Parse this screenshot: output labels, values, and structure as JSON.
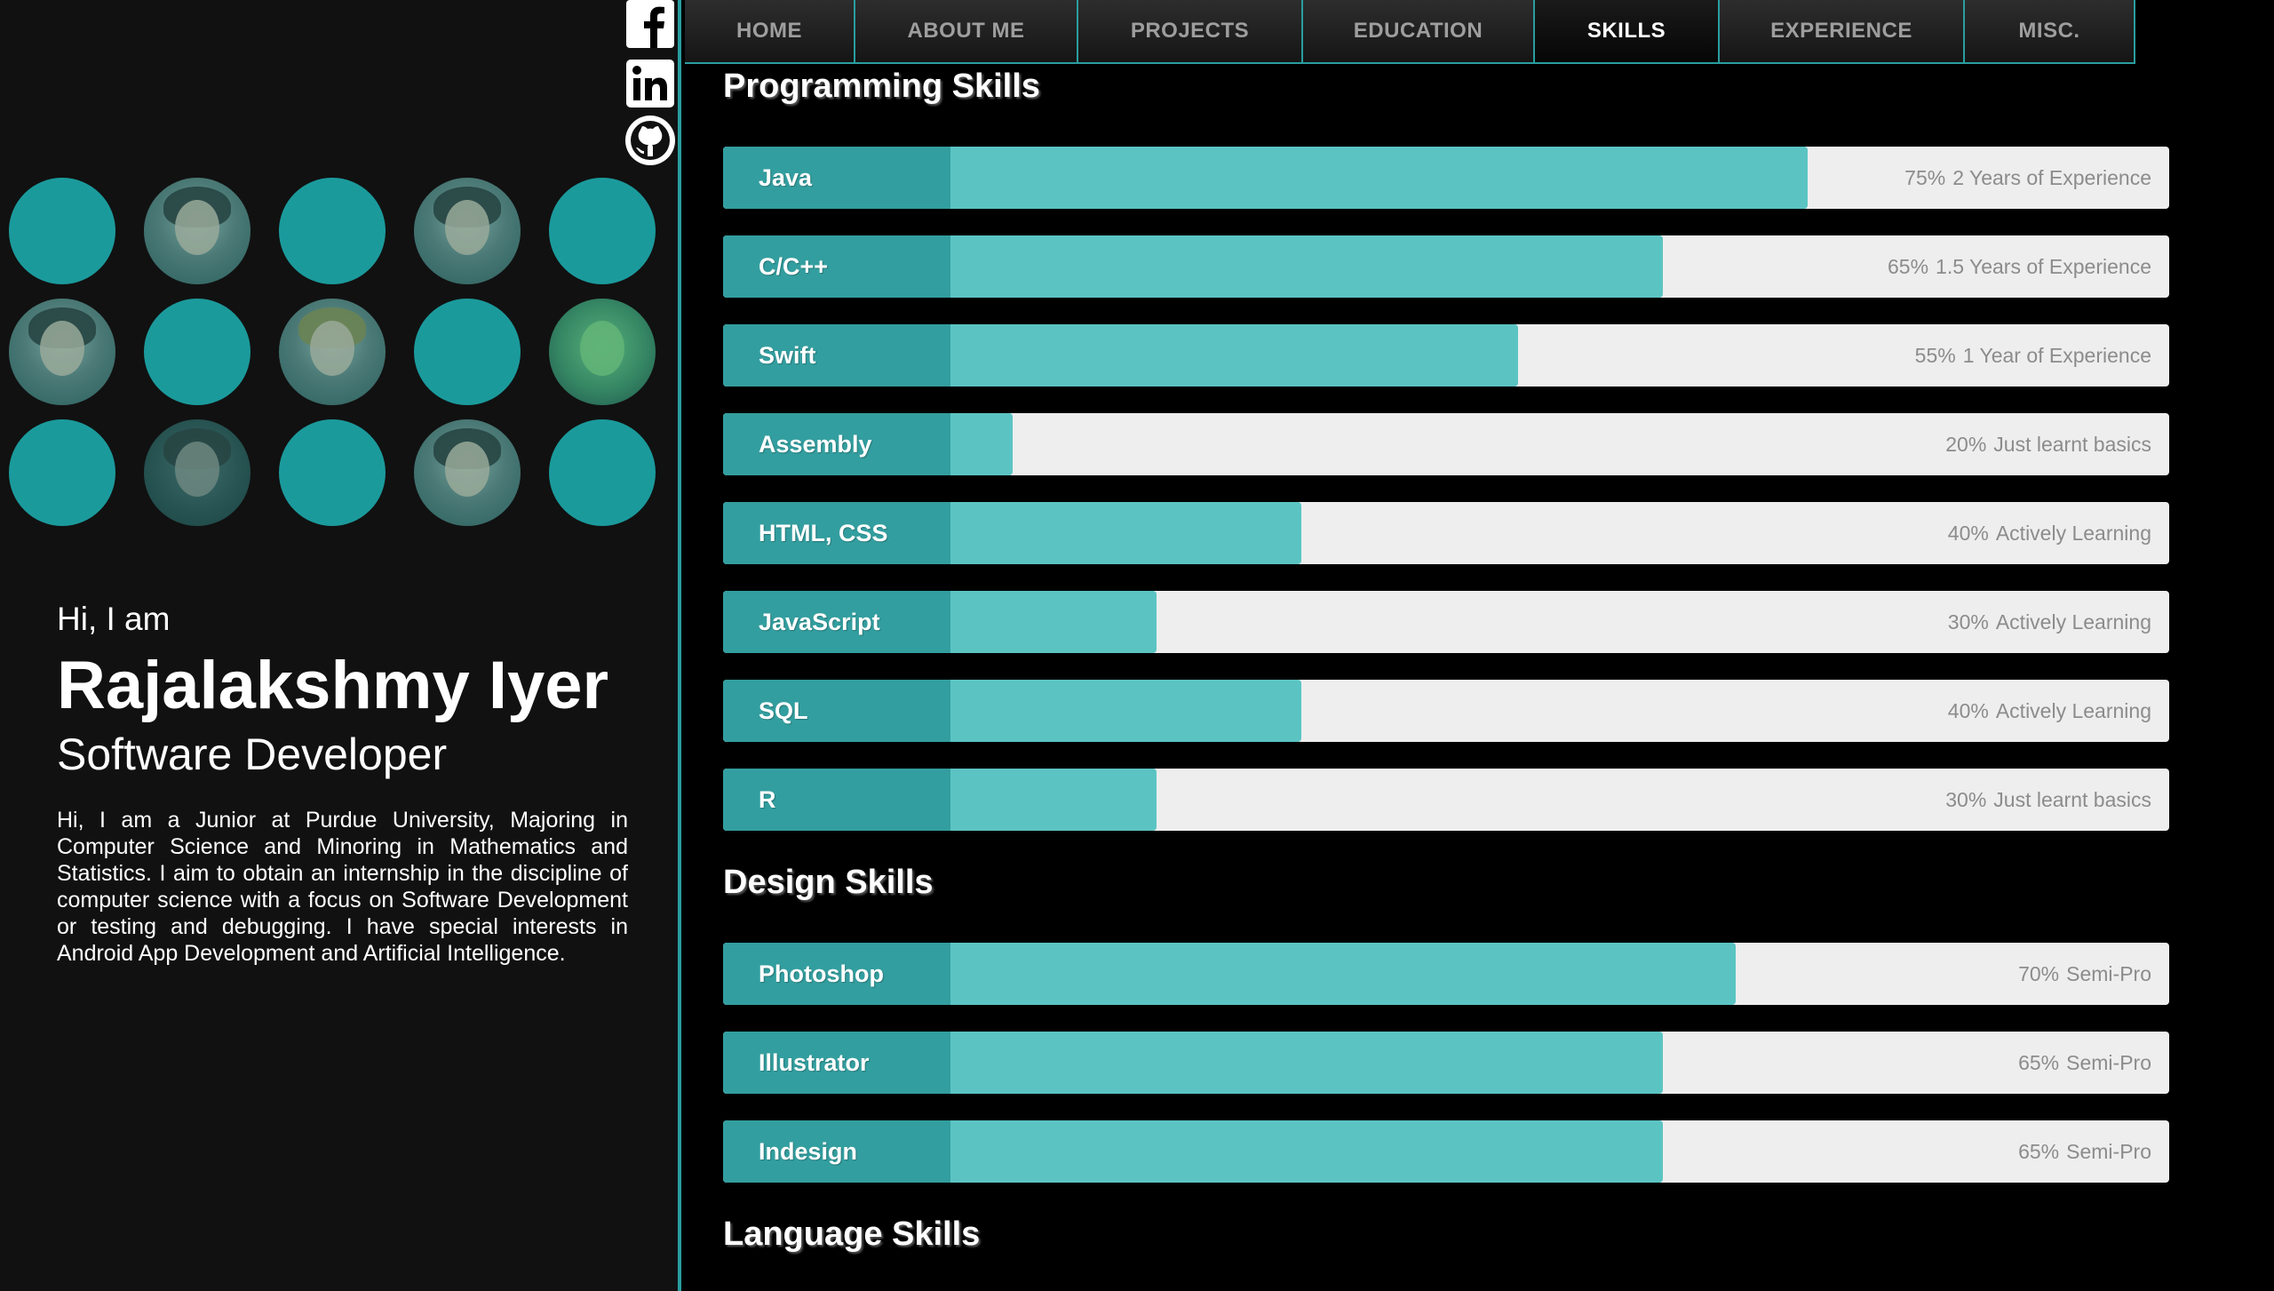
{
  "social": [
    {
      "name": "facebook"
    },
    {
      "name": "linkedin"
    },
    {
      "name": "github"
    }
  ],
  "intro": {
    "greeting": "Hi, I am",
    "name": "Rajalakshmy Iyer",
    "role": "Software Developer",
    "bio": "Hi, I am a Junior at Purdue University, Majoring in Computer Science and Minoring in Mathematics and Statistics. I aim to obtain an internship in the discipline of computer science with a focus on Software Development or testing and debugging. I have special interests in Android App Development and Artificial Intelligence."
  },
  "nav": {
    "tabs": [
      {
        "label": "HOME"
      },
      {
        "label": "ABOUT ME"
      },
      {
        "label": "PROJECTS"
      },
      {
        "label": "EDUCATION"
      },
      {
        "label": "SKILLS"
      },
      {
        "label": "EXPERIENCE"
      },
      {
        "label": "MISC."
      }
    ],
    "active": "SKILLS"
  },
  "programming": {
    "title": "Programming Skills",
    "skills": [
      {
        "name": "Java",
        "percent": "75%",
        "note": "2 Years of Experience",
        "level": 75
      },
      {
        "name": "C/C++",
        "percent": "65%",
        "note": "1.5 Years of Experience",
        "level": 65
      },
      {
        "name": "Swift",
        "percent": "55%",
        "note": "1 Year of Experience",
        "level": 55
      },
      {
        "name": "Assembly",
        "percent": "20%",
        "note": "Just learnt basics",
        "level": 20
      },
      {
        "name": "HTML, CSS",
        "percent": "40%",
        "note": "Actively Learning",
        "level": 40
      },
      {
        "name": "JavaScript",
        "percent": "30%",
        "note": "Actively Learning",
        "level": 30
      },
      {
        "name": "SQL",
        "percent": "40%",
        "note": "Actively Learning",
        "level": 40
      },
      {
        "name": "R",
        "percent": "30%",
        "note": "Just learnt basics",
        "level": 30
      }
    ]
  },
  "design": {
    "title": "Design Skills",
    "skills": [
      {
        "name": "Photoshop",
        "percent": "70%",
        "note": "Semi-Pro",
        "level": 70
      },
      {
        "name": "Illustrator",
        "percent": "65%",
        "note": "Semi-Pro",
        "level": 65
      },
      {
        "name": "Indesign",
        "percent": "65%",
        "note": "Semi-Pro",
        "level": 65
      }
    ]
  },
  "language": {
    "title": "Language Skills"
  },
  "colors": {
    "accent": "#2a9d9f",
    "fill": "#5bc4c3",
    "label_bg": "#339e9f",
    "track": "#eeeeee"
  }
}
